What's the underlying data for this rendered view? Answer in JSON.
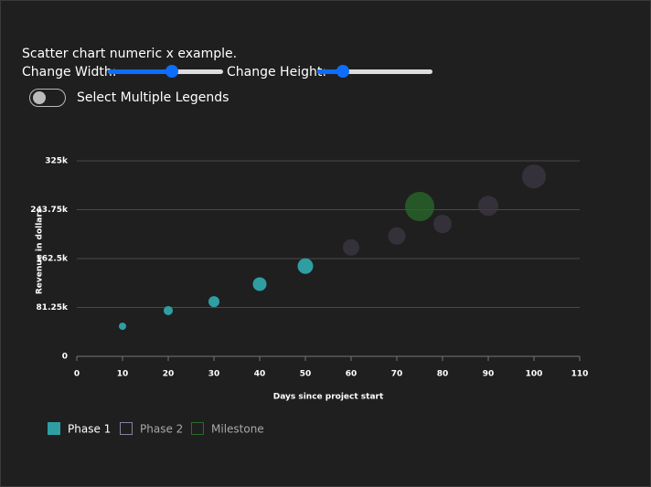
{
  "header": {
    "title": "Scatter chart numeric x example."
  },
  "controls": {
    "width_label": "Change Width:",
    "height_label": "Change Height:",
    "toggle_label": "Select Multiple Legends"
  },
  "chart_data": {
    "type": "scatter",
    "x_label": "Days since project start",
    "y_label": "Revenue in dollars",
    "xlim": [
      0,
      110
    ],
    "xticks": [
      0,
      10,
      20,
      30,
      40,
      50,
      60,
      70,
      80,
      90,
      100,
      110
    ],
    "ylim": [
      0,
      325000
    ],
    "yticks": [
      0,
      {
        "value": 81250,
        "label": "81.25k"
      },
      {
        "value": 162500,
        "label": "162.5k"
      },
      {
        "value": 243750,
        "label": "243.75k"
      },
      {
        "value": 325000,
        "label": "325k"
      }
    ],
    "grid": true,
    "series": [
      {
        "name": "Phase 1",
        "color": "#2f9ea3",
        "x": [
          10,
          20,
          30,
          40,
          50
        ],
        "values": [
          50000,
          76000,
          91000,
          120000,
          150000
        ],
        "sizes": [
          4,
          5,
          6,
          7.5,
          8.5
        ]
      },
      {
        "name": "Phase 2",
        "color": "#3d3845",
        "x": [
          60,
          70,
          80,
          90,
          100
        ],
        "values": [
          181000,
          200000,
          220000,
          250000,
          299000
        ],
        "sizes": [
          9,
          9.5,
          10,
          11,
          13
        ]
      },
      {
        "name": "Milestone",
        "color": "#2a6b2a",
        "x": [
          75
        ],
        "values": [
          249000
        ],
        "sizes": [
          16
        ]
      }
    ]
  }
}
